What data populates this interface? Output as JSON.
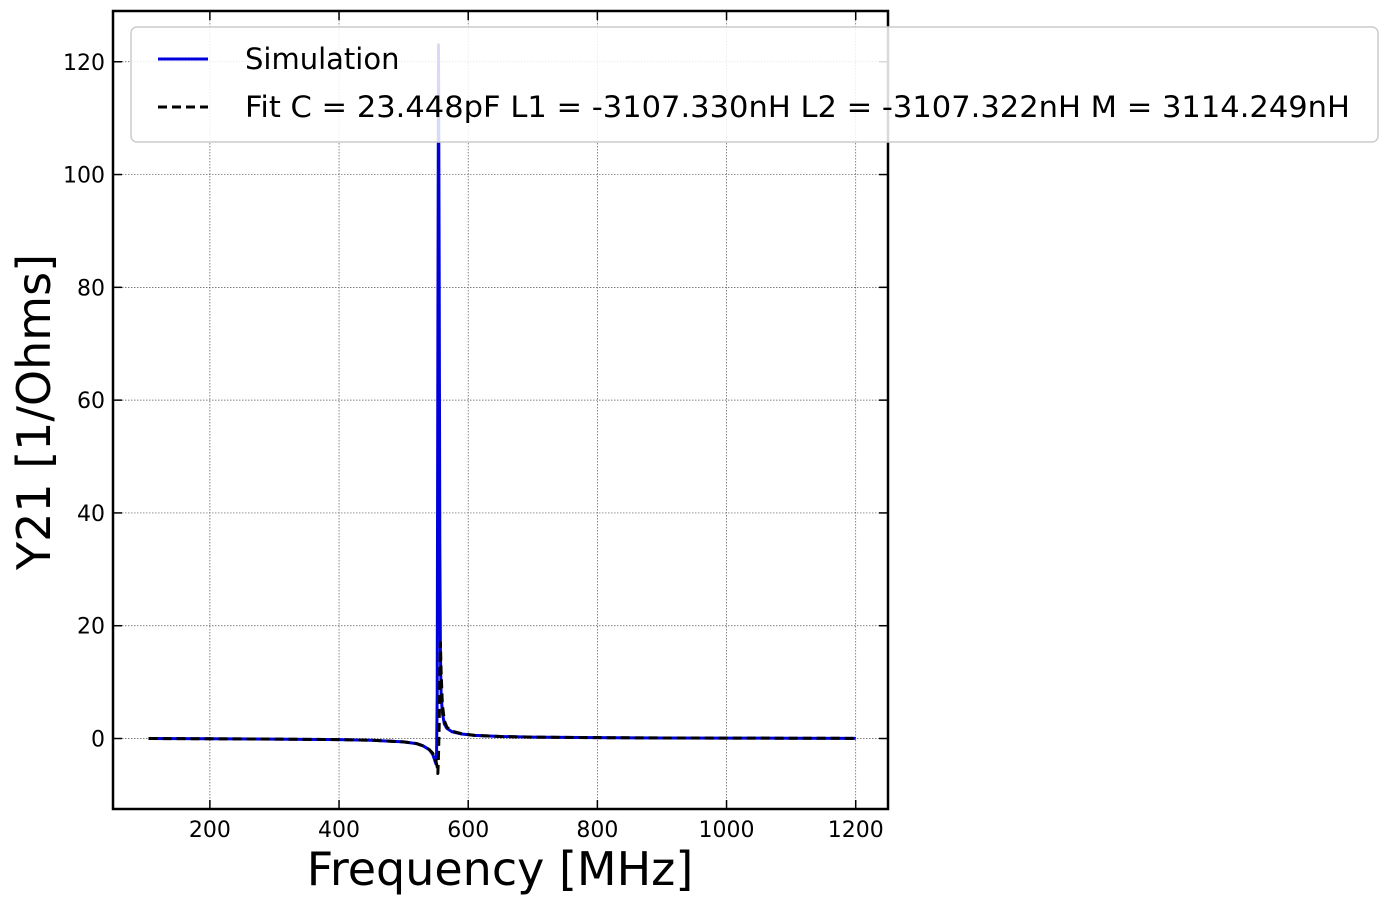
{
  "chart_data": {
    "type": "line",
    "title": "",
    "xlabel": "Frequency [MHz]",
    "ylabel": "Y21 [1/Ohms]",
    "xlim": [
      50,
      1250
    ],
    "ylim": [
      -12.5,
      129
    ],
    "xticks": [
      200,
      400,
      600,
      800,
      1000,
      1200
    ],
    "yticks": [
      0,
      20,
      40,
      60,
      80,
      100,
      120
    ],
    "grid": true,
    "legend_position": "top",
    "series": [
      {
        "name": "Simulation",
        "color": "#0000dd",
        "style": "solid",
        "x": [
          105,
          200,
          300,
          400,
          450,
          500,
          520,
          530,
          540,
          545,
          548,
          550,
          551,
          552,
          553,
          554,
          555,
          556,
          557,
          558,
          560,
          563,
          567,
          575,
          590,
          610,
          650,
          700,
          800,
          900,
          1000,
          1100,
          1200
        ],
        "y": [
          0,
          -0.05,
          -0.1,
          -0.2,
          -0.3,
          -0.6,
          -0.9,
          -1.3,
          -2.0,
          -2.8,
          -3.8,
          -4.5,
          -3.0,
          8,
          70,
          123,
          85,
          35,
          15,
          8,
          4.5,
          2.6,
          1.8,
          1.2,
          0.8,
          0.55,
          0.35,
          0.25,
          0.15,
          0.1,
          0.07,
          0.05,
          0.03
        ]
      },
      {
        "name": "Fit C = 23.448pF L1 = -3107.330nH L2 = -3107.322nH  M = 3114.249nH",
        "color": "#000000",
        "style": "dashed",
        "x": [
          105,
          200,
          300,
          400,
          450,
          500,
          520,
          530,
          540,
          545,
          548,
          550,
          552,
          553,
          554,
          555,
          556,
          557,
          558,
          560,
          563,
          567,
          575,
          590,
          610,
          650,
          700,
          800,
          900,
          1000,
          1100,
          1200
        ],
        "y": [
          0,
          -0.05,
          -0.1,
          -0.2,
          -0.3,
          -0.6,
          -0.9,
          -1.3,
          -2.0,
          -2.6,
          -3.3,
          -4.0,
          -5.0,
          -6.2,
          -3.0,
          2,
          10,
          17,
          12,
          6,
          3.2,
          2.0,
          1.3,
          0.85,
          0.55,
          0.35,
          0.25,
          0.15,
          0.1,
          0.07,
          0.05,
          0.03
        ]
      }
    ]
  }
}
